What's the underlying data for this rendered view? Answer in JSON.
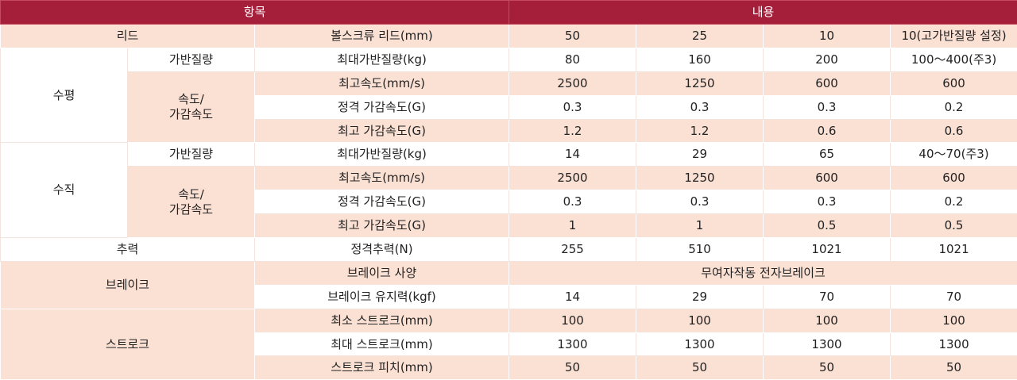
{
  "table": {
    "header": [
      "항목",
      "내용"
    ],
    "rows": [
      [
        "리드",
        "볼스크류 리드(mm)",
        50,
        25,
        10,
        "10(고가반질량 설정)"
      ],
      [
        "수평",
        "가반질량",
        "최대가반질량(kg)",
        80,
        160,
        200,
        "100～400(주3)"
      ],
      [
        "속도/\n가감속도",
        "최고속도(mm/s)",
        2500,
        1250,
        600,
        600
      ],
      [
        "정격 가감속도(G)",
        0.3,
        0.3,
        0.3,
        0.2
      ],
      [
        "최고 가감속도(G)",
        1.2,
        1.2,
        0.6,
        0.6
      ],
      [
        "수직",
        "가반질량",
        "최대가반질량(kg)",
        14,
        29,
        65,
        "40～70(주3)"
      ],
      [
        "속도/\n가감속도",
        "최고속도(mm/s)",
        2500,
        1250,
        600,
        600
      ],
      [
        "정격 가감속도(G)",
        0.3,
        0.3,
        0.3,
        0.2
      ],
      [
        "최고 가감속도(G)",
        1,
        1,
        0.5,
        0.5
      ],
      [
        "추력",
        "정격추력(N)",
        255,
        510,
        1021,
        1021
      ],
      [
        "브레이크",
        "브레이크 사양",
        "무여자작동 전자브레이크"
      ],
      [
        "브레이크 유지력(kgf)",
        14,
        29,
        70,
        70
      ],
      [
        "스트로크",
        "최소 스트로크(mm)",
        100,
        100,
        100,
        100
      ],
      [
        "최대 스트로크(mm)",
        1300,
        1300,
        1300,
        1300
      ],
      [
        "스트로크 피치(mm)",
        50,
        50,
        50,
        50
      ]
    ]
  }
}
